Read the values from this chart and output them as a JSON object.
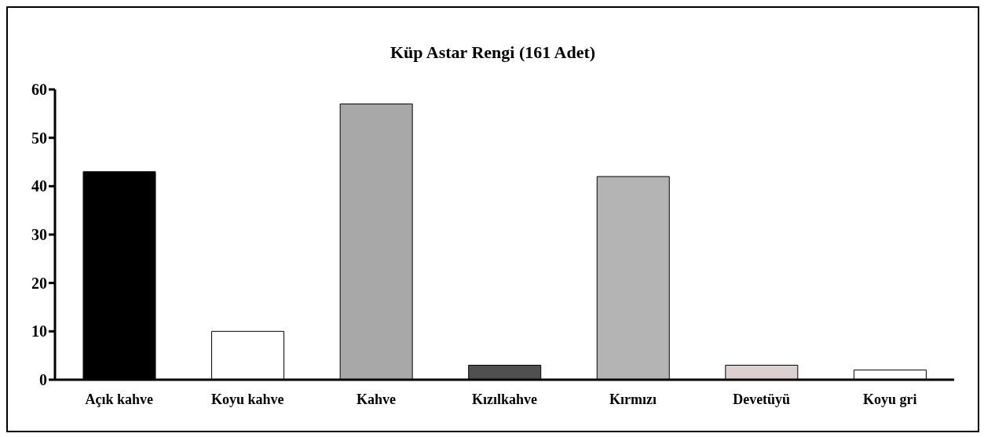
{
  "chart_data": {
    "type": "bar",
    "title": "Küp Astar Rengi (161 Adet)",
    "categories": [
      "Açık kahve",
      "Koyu kahve",
      "Kahve",
      "Kızılkahve",
      "Kırmızı",
      "Devetüyü",
      "Koyu gri"
    ],
    "values": [
      43,
      10,
      57,
      3,
      42,
      3,
      2
    ],
    "colors": [
      "#000000",
      "#ffffff",
      "#a8a8a8",
      "#505050",
      "#b4b4b4",
      "#dcd0d0",
      "#ffffff"
    ],
    "ylim": [
      0,
      60
    ],
    "yticks": [
      0,
      10,
      20,
      30,
      40,
      50,
      60
    ],
    "grid": false,
    "legend": false
  }
}
